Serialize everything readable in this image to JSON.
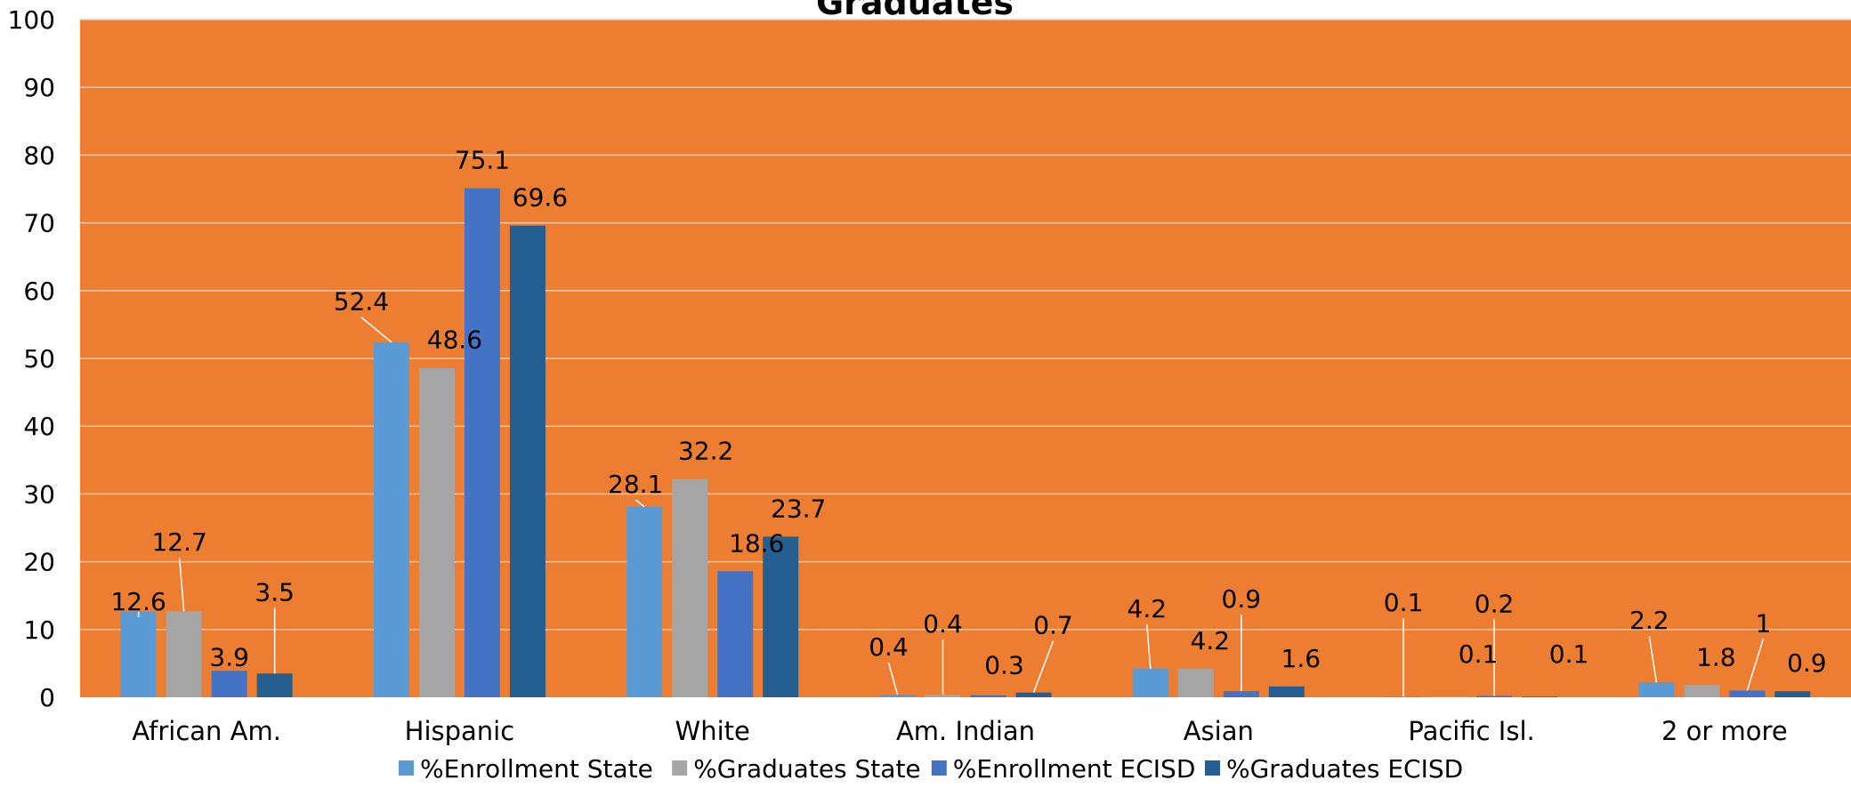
{
  "chart_data": {
    "type": "bar",
    "title": "Graduates",
    "xlabel": "",
    "ylabel": "",
    "ylim": [
      0,
      100
    ],
    "yticks": [
      0,
      10,
      20,
      30,
      40,
      50,
      60,
      70,
      80,
      90,
      100
    ],
    "grid": true,
    "legend_position": "bottom",
    "plot_background": "#ED7D31",
    "categories": [
      "African Am.",
      "Hispanic",
      "White",
      "Am. Indian",
      "Asian",
      "Pacific Isl.",
      "2 or more"
    ],
    "series": [
      {
        "name": "%Enrollment State",
        "color": "#5B9BD5",
        "values": [
          12.6,
          52.4,
          28.1,
          0.4,
          4.2,
          0.1,
          2.2
        ],
        "labels": [
          "12.6",
          "52.4",
          "28.1",
          "0.4",
          "4.2",
          "0.1",
          "2.2"
        ]
      },
      {
        "name": "%Graduates State",
        "color": "#A5A5A5",
        "values": [
          12.7,
          48.6,
          32.2,
          0.4,
          4.2,
          0.1,
          1.8
        ],
        "labels": [
          "12.7",
          "48.6",
          "32.2",
          "0.4",
          "4.2",
          "0.1",
          "1.8"
        ]
      },
      {
        "name": "%Enrollment ECISD",
        "color": "#4472C4",
        "values": [
          3.9,
          75.1,
          18.6,
          0.3,
          0.9,
          0.2,
          1.0
        ],
        "labels": [
          "3.9",
          "75.1",
          "18.6",
          "0.3",
          "0.9",
          "0.2",
          "1"
        ]
      },
      {
        "name": "%Graduates ECISD",
        "color": "#255E91",
        "values": [
          3.5,
          69.6,
          23.7,
          0.7,
          1.6,
          0.1,
          0.9
        ],
        "labels": [
          "3.5",
          "69.6",
          "23.7",
          "0.7",
          "1.6",
          "0.1",
          "0.9"
        ]
      }
    ]
  }
}
